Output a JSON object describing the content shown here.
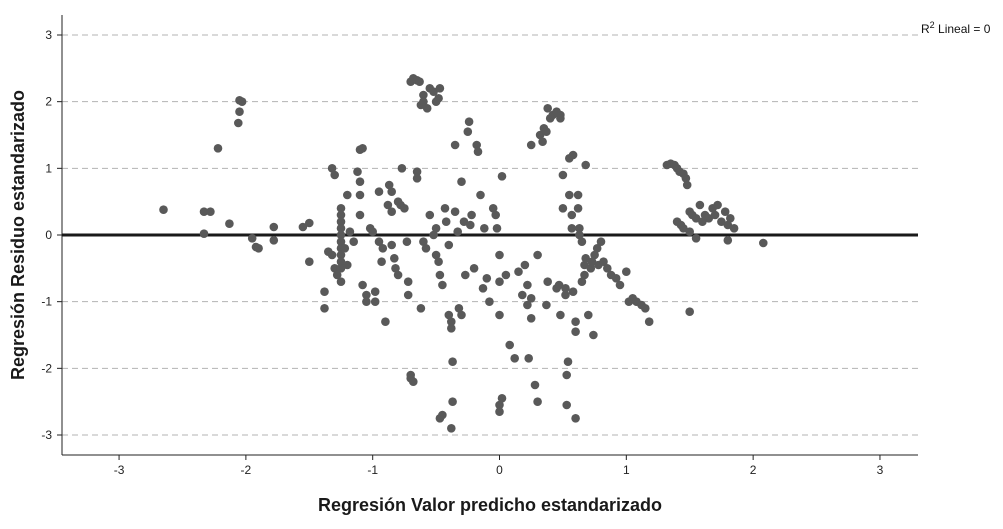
{
  "colors": {
    "point": "#595959",
    "grid": "#b3b3b3",
    "axis": "#222222",
    "refline": "#1a1a1a"
  },
  "chart_data": {
    "type": "scatter",
    "xlabel": "Regresión Valor predicho estandarizado",
    "ylabel": "Regresión Residuo estandarizado",
    "annotation_sup": "2",
    "annotation_before": "R",
    "annotation_after": " Lineal = 0",
    "xlim": [
      -3.45,
      3.3
    ],
    "ylim": [
      -3.3,
      3.3
    ],
    "x_ticks": [
      -3,
      -2,
      -1,
      0,
      1,
      2,
      3
    ],
    "y_ticks": [
      -3,
      -2,
      -1,
      0,
      1,
      2,
      3
    ],
    "grid": {
      "horizontal": "dashed",
      "vertical": false
    },
    "reference_line_y": 0,
    "points": [
      [
        -2.65,
        0.38
      ],
      [
        -2.33,
        0.35
      ],
      [
        -2.28,
        0.35
      ],
      [
        -2.33,
        0.02
      ],
      [
        -2.22,
        1.3
      ],
      [
        -2.13,
        0.17
      ],
      [
        -2.05,
        2.02
      ],
      [
        -2.03,
        2.0
      ],
      [
        -2.05,
        1.85
      ],
      [
        -2.06,
        1.68
      ],
      [
        -1.95,
        -0.05
      ],
      [
        -1.92,
        -0.18
      ],
      [
        -1.9,
        -0.2
      ],
      [
        -1.78,
        0.12
      ],
      [
        -1.78,
        -0.08
      ],
      [
        -1.55,
        0.12
      ],
      [
        -1.5,
        0.18
      ],
      [
        -1.5,
        -0.4
      ],
      [
        -1.38,
        -0.85
      ],
      [
        -1.38,
        -1.1
      ],
      [
        -1.35,
        -0.25
      ],
      [
        -1.32,
        1.0
      ],
      [
        -1.3,
        0.9
      ],
      [
        -1.32,
        -0.3
      ],
      [
        -1.3,
        -0.5
      ],
      [
        -1.28,
        -0.6
      ],
      [
        -1.25,
        0.4
      ],
      [
        -1.25,
        0.3
      ],
      [
        -1.25,
        0.2
      ],
      [
        -1.25,
        0.1
      ],
      [
        -1.25,
        0.0
      ],
      [
        -1.25,
        -0.1
      ],
      [
        -1.25,
        -0.2
      ],
      [
        -1.25,
        -0.3
      ],
      [
        -1.25,
        -0.4
      ],
      [
        -1.25,
        -0.5
      ],
      [
        -1.25,
        -0.7
      ],
      [
        -1.2,
        0.6
      ],
      [
        -1.22,
        -0.2
      ],
      [
        -1.2,
        -0.45
      ],
      [
        -1.18,
        0.05
      ],
      [
        -1.15,
        -0.1
      ],
      [
        -1.12,
        0.95
      ],
      [
        -1.1,
        1.28
      ],
      [
        -1.08,
        1.3
      ],
      [
        -1.1,
        0.8
      ],
      [
        -1.1,
        0.6
      ],
      [
        -1.1,
        0.3
      ],
      [
        -1.08,
        -0.75
      ],
      [
        -1.05,
        -0.9
      ],
      [
        -1.05,
        -1.0
      ],
      [
        -1.02,
        0.1
      ],
      [
        -1.0,
        0.05
      ],
      [
        -0.98,
        -0.85
      ],
      [
        -0.98,
        -1.0
      ],
      [
        -0.95,
        -0.1
      ],
      [
        -0.95,
        0.65
      ],
      [
        -0.93,
        -0.4
      ],
      [
        -0.92,
        -0.2
      ],
      [
        -0.9,
        -1.3
      ],
      [
        -0.88,
        0.45
      ],
      [
        -0.87,
        0.75
      ],
      [
        -0.85,
        0.65
      ],
      [
        -0.85,
        0.35
      ],
      [
        -0.85,
        -0.15
      ],
      [
        -0.83,
        -0.35
      ],
      [
        -0.82,
        -0.5
      ],
      [
        -0.8,
        -0.6
      ],
      [
        -0.8,
        0.5
      ],
      [
        -0.78,
        0.45
      ],
      [
        -0.77,
        1.0
      ],
      [
        -0.75,
        0.4
      ],
      [
        -0.73,
        -0.1
      ],
      [
        -0.72,
        -0.7
      ],
      [
        -0.72,
        -0.9
      ],
      [
        -0.7,
        -2.1
      ],
      [
        -0.7,
        -2.15
      ],
      [
        -0.68,
        -2.2
      ],
      [
        -0.7,
        2.3
      ],
      [
        -0.68,
        2.35
      ],
      [
        -0.65,
        2.32
      ],
      [
        -0.63,
        2.3
      ],
      [
        -0.6,
        2.1
      ],
      [
        -0.62,
        1.95
      ],
      [
        -0.6,
        2.0
      ],
      [
        -0.57,
        1.9
      ],
      [
        -0.55,
        2.2
      ],
      [
        -0.52,
        2.15
      ],
      [
        -0.5,
        2.0
      ],
      [
        -0.48,
        2.05
      ],
      [
        -0.47,
        2.2
      ],
      [
        -0.65,
        0.95
      ],
      [
        -0.65,
        0.85
      ],
      [
        -0.62,
        -1.1
      ],
      [
        -0.6,
        -0.1
      ],
      [
        -0.58,
        -0.2
      ],
      [
        -0.55,
        0.3
      ],
      [
        -0.52,
        0.0
      ],
      [
        -0.5,
        0.1
      ],
      [
        -0.5,
        -0.3
      ],
      [
        -0.48,
        -0.4
      ],
      [
        -0.47,
        -0.6
      ],
      [
        -0.45,
        -0.75
      ],
      [
        -0.45,
        -2.7
      ],
      [
        -0.47,
        -2.75
      ],
      [
        -0.43,
        0.4
      ],
      [
        -0.42,
        0.2
      ],
      [
        -0.4,
        -0.15
      ],
      [
        -0.4,
        -1.2
      ],
      [
        -0.38,
        -1.3
      ],
      [
        -0.38,
        -1.4
      ],
      [
        -0.37,
        -1.9
      ],
      [
        -0.37,
        -2.5
      ],
      [
        -0.38,
        -2.9
      ],
      [
        -0.35,
        1.35
      ],
      [
        -0.35,
        0.35
      ],
      [
        -0.33,
        0.05
      ],
      [
        -0.32,
        -1.1
      ],
      [
        -0.3,
        -1.2
      ],
      [
        -0.3,
        0.8
      ],
      [
        -0.28,
        0.2
      ],
      [
        -0.27,
        -0.6
      ],
      [
        -0.25,
        1.55
      ],
      [
        -0.24,
        1.7
      ],
      [
        -0.23,
        0.15
      ],
      [
        -0.22,
        0.3
      ],
      [
        -0.2,
        -0.5
      ],
      [
        -0.18,
        1.35
      ],
      [
        -0.17,
        1.25
      ],
      [
        -0.15,
        0.6
      ],
      [
        -0.13,
        -0.8
      ],
      [
        -0.12,
        0.1
      ],
      [
        -0.1,
        -0.65
      ],
      [
        -0.08,
        -1.0
      ],
      [
        -0.05,
        0.4
      ],
      [
        -0.03,
        0.3
      ],
      [
        -0.02,
        0.1
      ],
      [
        0.0,
        -0.3
      ],
      [
        0.0,
        -0.7
      ],
      [
        0.0,
        -1.2
      ],
      [
        0.02,
        0.88
      ],
      [
        0.02,
        -2.45
      ],
      [
        0.0,
        -2.55
      ],
      [
        0.0,
        -2.65
      ],
      [
        0.05,
        -0.6
      ],
      [
        0.08,
        -1.65
      ],
      [
        0.12,
        -1.85
      ],
      [
        0.15,
        -0.55
      ],
      [
        0.18,
        -0.9
      ],
      [
        0.2,
        -0.45
      ],
      [
        0.22,
        -0.75
      ],
      [
        0.22,
        -1.05
      ],
      [
        0.23,
        -1.85
      ],
      [
        0.25,
        -0.95
      ],
      [
        0.25,
        -1.25
      ],
      [
        0.25,
        1.35
      ],
      [
        0.28,
        -2.25
      ],
      [
        0.3,
        -2.5
      ],
      [
        0.3,
        -0.3
      ],
      [
        0.32,
        1.5
      ],
      [
        0.34,
        1.4
      ],
      [
        0.35,
        1.6
      ],
      [
        0.37,
        1.55
      ],
      [
        0.38,
        1.9
      ],
      [
        0.38,
        -0.7
      ],
      [
        0.37,
        -1.05
      ],
      [
        0.4,
        1.75
      ],
      [
        0.42,
        1.8
      ],
      [
        0.45,
        1.85
      ],
      [
        0.48,
        1.8
      ],
      [
        0.48,
        1.75
      ],
      [
        0.45,
        -0.8
      ],
      [
        0.47,
        -0.75
      ],
      [
        0.48,
        -1.2
      ],
      [
        0.5,
        0.9
      ],
      [
        0.5,
        0.4
      ],
      [
        0.52,
        -0.8
      ],
      [
        0.52,
        -0.9
      ],
      [
        0.53,
        -2.55
      ],
      [
        0.53,
        -2.1
      ],
      [
        0.54,
        -1.9
      ],
      [
        0.55,
        1.15
      ],
      [
        0.55,
        0.6
      ],
      [
        0.57,
        0.3
      ],
      [
        0.57,
        0.1
      ],
      [
        0.58,
        1.2
      ],
      [
        0.58,
        -0.85
      ],
      [
        0.6,
        -1.3
      ],
      [
        0.6,
        -1.45
      ],
      [
        0.6,
        -2.75
      ],
      [
        0.62,
        0.6
      ],
      [
        0.62,
        0.4
      ],
      [
        0.63,
        0.1
      ],
      [
        0.63,
        0.0
      ],
      [
        0.65,
        -0.1
      ],
      [
        0.65,
        -0.7
      ],
      [
        0.67,
        -0.6
      ],
      [
        0.67,
        -0.45
      ],
      [
        0.68,
        -0.35
      ],
      [
        0.68,
        1.05
      ],
      [
        0.7,
        -1.2
      ],
      [
        0.72,
        -0.5
      ],
      [
        0.73,
        -0.4
      ],
      [
        0.74,
        -1.5
      ],
      [
        0.75,
        -0.3
      ],
      [
        0.77,
        -0.2
      ],
      [
        0.78,
        -0.45
      ],
      [
        0.8,
        -0.1
      ],
      [
        0.82,
        -0.4
      ],
      [
        0.85,
        -0.5
      ],
      [
        0.88,
        -0.6
      ],
      [
        0.92,
        -0.65
      ],
      [
        0.95,
        -0.75
      ],
      [
        1.0,
        -0.55
      ],
      [
        1.02,
        -1.0
      ],
      [
        1.05,
        -0.95
      ],
      [
        1.08,
        -1.0
      ],
      [
        1.12,
        -1.05
      ],
      [
        1.15,
        -1.1
      ],
      [
        1.18,
        -1.3
      ],
      [
        1.32,
        1.05
      ],
      [
        1.35,
        1.07
      ],
      [
        1.38,
        1.05
      ],
      [
        1.4,
        1.0
      ],
      [
        1.42,
        0.95
      ],
      [
        1.45,
        0.92
      ],
      [
        1.47,
        0.85
      ],
      [
        1.48,
        0.75
      ],
      [
        1.5,
        0.35
      ],
      [
        1.52,
        0.3
      ],
      [
        1.55,
        0.25
      ],
      [
        1.6,
        0.2
      ],
      [
        1.65,
        0.25
      ],
      [
        1.7,
        0.3
      ],
      [
        1.75,
        0.2
      ],
      [
        1.8,
        0.15
      ],
      [
        1.85,
        0.1
      ],
      [
        1.4,
        0.2
      ],
      [
        1.43,
        0.15
      ],
      [
        1.45,
        0.1
      ],
      [
        1.5,
        0.05
      ],
      [
        1.55,
        -0.05
      ],
      [
        1.58,
        0.45
      ],
      [
        1.62,
        0.3
      ],
      [
        1.68,
        0.4
      ],
      [
        1.72,
        0.45
      ],
      [
        1.78,
        0.35
      ],
      [
        1.82,
        0.25
      ],
      [
        1.5,
        -1.15
      ],
      [
        1.8,
        -0.08
      ],
      [
        2.08,
        -0.12
      ]
    ]
  }
}
